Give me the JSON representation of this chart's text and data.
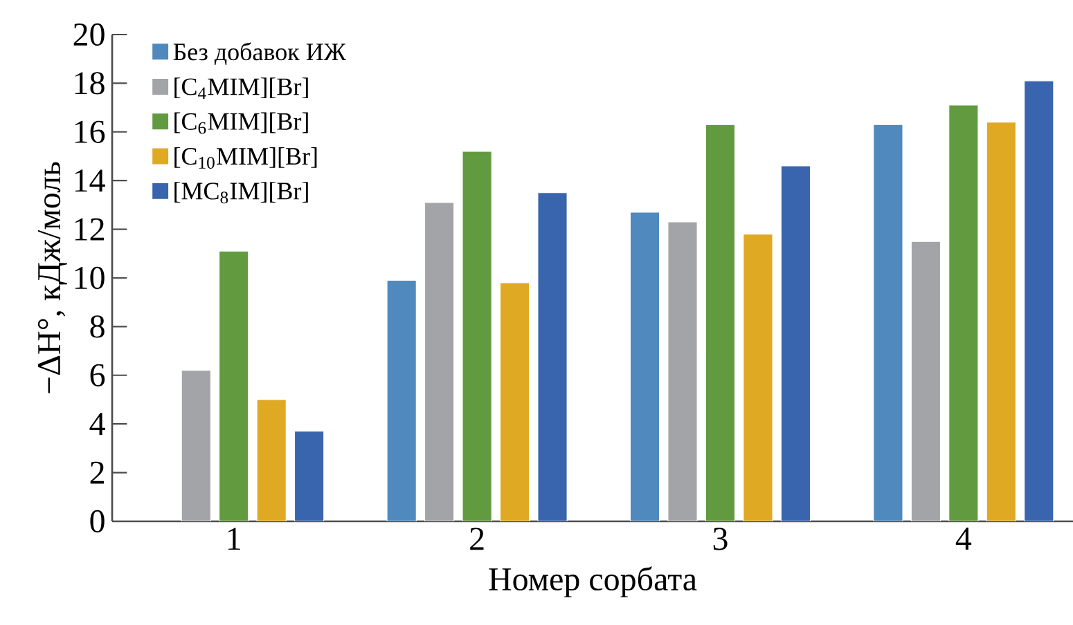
{
  "chart_data": {
    "type": "bar",
    "xlabel": "Номер сорбата",
    "ylabel": "−ΔH°, кДж/моль",
    "categories": [
      "1",
      "2",
      "3",
      "4"
    ],
    "series": [
      {
        "name": "Без добавок ИЖ",
        "color": "#4f89bd",
        "values": [
          null,
          9.9,
          12.7,
          16.3
        ]
      },
      {
        "name": "[C$_{4}$MIM][Br]",
        "color": "#a3a4a8",
        "values": [
          6.2,
          13.1,
          12.3,
          11.5
        ]
      },
      {
        "name": "[C$_{6}$MIM][Br]",
        "color": "#629b3f",
        "values": [
          11.1,
          15.2,
          16.3,
          17.1
        ]
      },
      {
        "name": "[C$_{10}$MIM][Br]",
        "color": "#e0a924",
        "values": [
          5.0,
          9.8,
          11.8,
          16.4
        ]
      },
      {
        "name": "[MC$_{8}$IM][Br]",
        "color": "#3964ae",
        "values": [
          3.7,
          13.5,
          14.6,
          18.1
        ]
      }
    ],
    "ylim": [
      0,
      20
    ],
    "yticks": [
      0,
      2,
      4,
      6,
      8,
      10,
      12,
      14,
      16,
      18,
      20
    ],
    "legend": "top left"
  }
}
